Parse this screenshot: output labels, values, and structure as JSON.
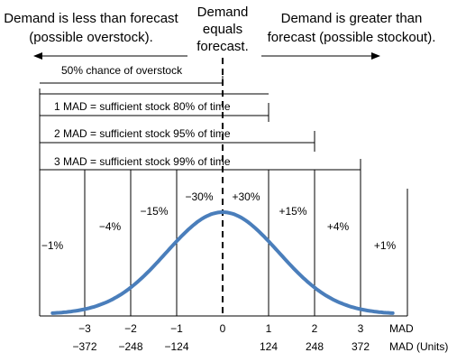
{
  "header": {
    "left_line1": "Demand is less than forecast",
    "left_line2": "(possible overstock).",
    "center_line1": "Demand",
    "center_line2": "equals",
    "center_line3": "forecast.",
    "right_line1": "Demand is greater than",
    "right_line2": "forecast (possible stockout)."
  },
  "brackets": {
    "overstock": "50% chance of overstock",
    "mad1": "1 MAD = sufficient stock 80% of time",
    "mad2": "2 MAD = sufficient stock 95% of time",
    "mad3": "3 MAD = sufficient stock 99% of time"
  },
  "region_percents": [
    "−1%",
    "−4%",
    "−15%",
    "−30%",
    "+30%",
    "+15%",
    "+4%",
    "+1%"
  ],
  "axis": {
    "mad_label": "MAD",
    "units_label": "MAD (Units)",
    "mad_ticks": [
      "−3",
      "−2",
      "−1",
      "0",
      "1",
      "2",
      "3"
    ],
    "unit_ticks": [
      "−372",
      "−248",
      "−124",
      "",
      "124",
      "248",
      "372"
    ]
  },
  "colors": {
    "curve": "#4a7ebb",
    "lines": "#000000"
  }
}
